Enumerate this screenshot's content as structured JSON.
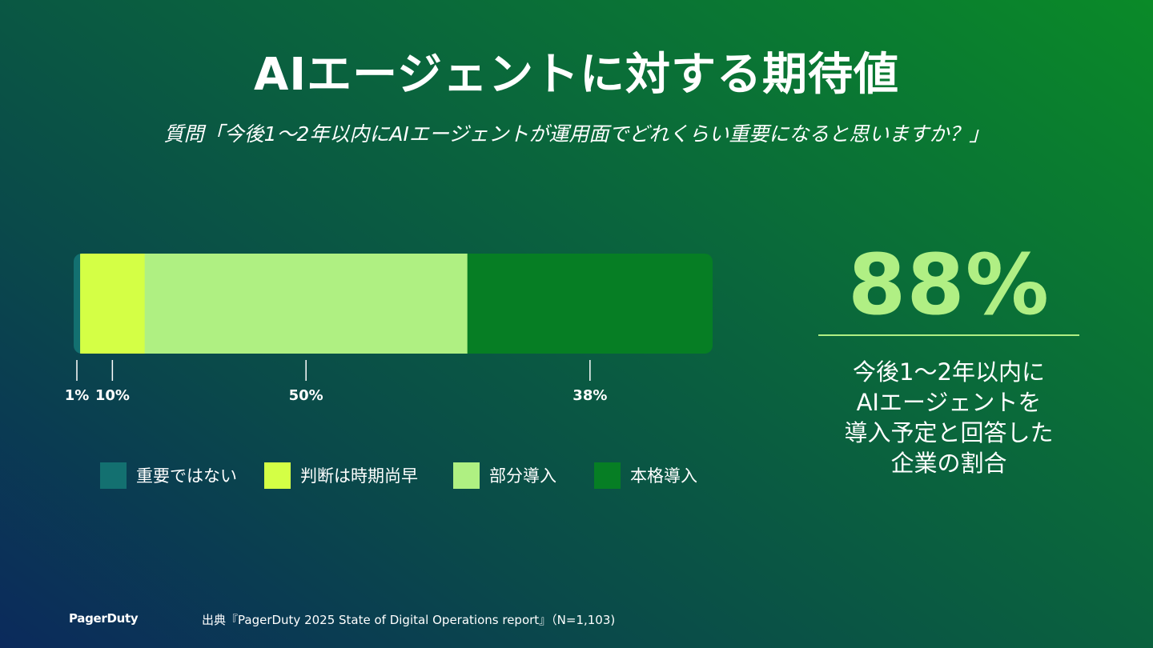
{
  "title": "AIエージェントに対する期待値",
  "subtitle": "質問「今後1〜2年以内にAIエージェントが運用面でどれくらい重要になると思いますか？」",
  "chart_data": {
    "type": "bar",
    "orientation": "horizontal-stacked-100",
    "categories": [
      "重要ではない",
      "判断は時期尚早",
      "部分導入",
      "本格導入"
    ],
    "values": [
      1,
      10,
      50,
      38
    ],
    "labels": [
      "1%",
      "10%",
      "50%",
      "38%"
    ],
    "colors": [
      "#137070",
      "#d4ff45",
      "#aff082",
      "#067e24"
    ],
    "legend_position": "bottom",
    "grid": false
  },
  "kpi": {
    "value": "88%",
    "caption_lines": [
      "今後1〜2年以内に",
      "AIエージェントを",
      "導入予定と回答した",
      "企業の割合"
    ],
    "color": "#b0ef84"
  },
  "footer": {
    "logo": "PagerDuty",
    "source": "出典『PagerDuty 2025 State of Digital Operations report』（N=1,103)"
  }
}
